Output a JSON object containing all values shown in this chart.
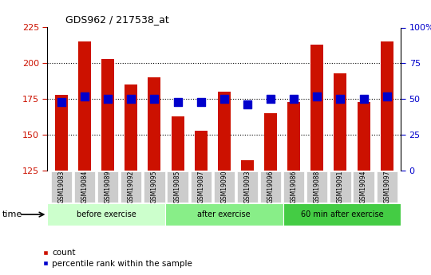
{
  "title": "GDS962 / 217538_at",
  "samples": [
    "GSM19083",
    "GSM19084",
    "GSM19089",
    "GSM19092",
    "GSM19095",
    "GSM19085",
    "GSM19087",
    "GSM19090",
    "GSM19093",
    "GSM19096",
    "GSM19086",
    "GSM19088",
    "GSM19091",
    "GSM19094",
    "GSM19097"
  ],
  "counts": [
    178,
    215,
    203,
    185,
    190,
    163,
    153,
    180,
    132,
    165,
    173,
    213,
    193,
    173,
    215
  ],
  "percentile_ranks": [
    48,
    52,
    50,
    50,
    50,
    48,
    48,
    50,
    46,
    50,
    50,
    52,
    50,
    50,
    52
  ],
  "groups": [
    {
      "label": "before exercise",
      "start": 0,
      "end": 5,
      "color": "#ccffcc"
    },
    {
      "label": "after exercise",
      "start": 5,
      "end": 10,
      "color": "#88ee88"
    },
    {
      "label": "60 min after exercise",
      "start": 10,
      "end": 15,
      "color": "#44cc44"
    }
  ],
  "bar_color": "#cc1100",
  "dot_color": "#0000cc",
  "ylim_left": [
    125,
    225
  ],
  "ylim_right": [
    0,
    100
  ],
  "yticks_left": [
    125,
    150,
    175,
    200,
    225
  ],
  "yticks_right": [
    0,
    25,
    50,
    75,
    100
  ],
  "grid_vals": [
    150,
    175,
    200
  ],
  "bar_color_hex": "#cc1100",
  "bg_color": "#ffffff",
  "tick_bg_color": "#cccccc",
  "bar_width": 0.55,
  "dot_size": 45,
  "left_tick_color": "#cc1100",
  "right_tick_color": "#0000cc",
  "legend_count_label": "count",
  "legend_pct_label": "percentile rank within the sample",
  "time_label": "time"
}
